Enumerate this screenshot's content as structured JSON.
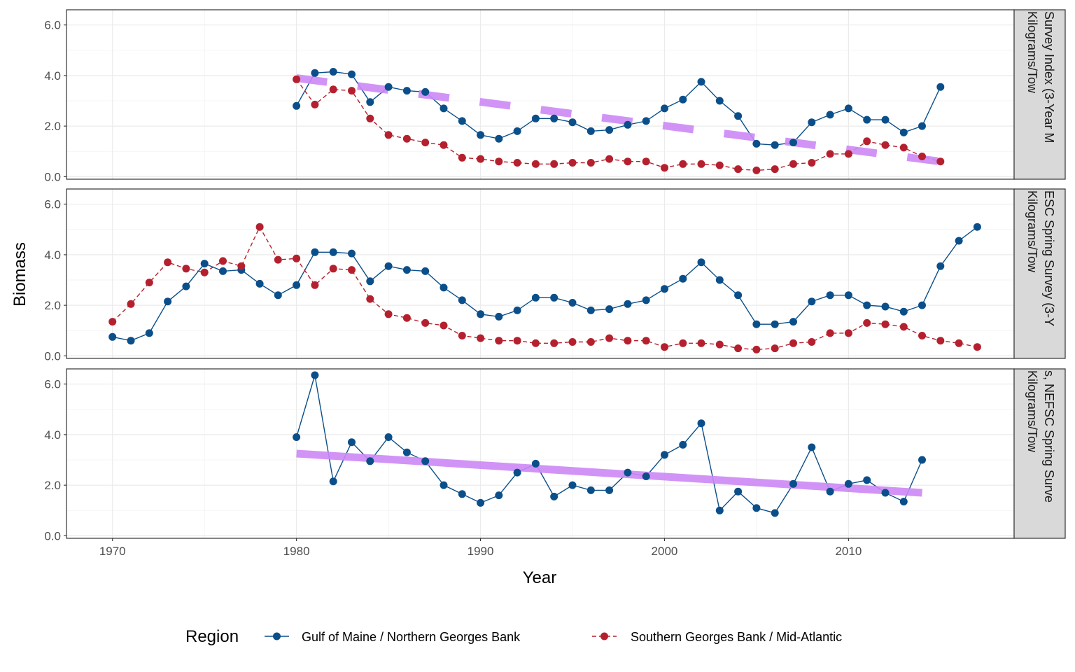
{
  "chart_data": {
    "type": "line",
    "xlabel": "Year",
    "ylabel": "Biomass",
    "xlim": [
      1967.5,
      2019
    ],
    "ylim": [
      -0.1,
      6.6
    ],
    "x_ticks": [
      1970,
      1980,
      1990,
      2000,
      2010
    ],
    "y_ticks": [
      0,
      2,
      4,
      6
    ],
    "y_tick_labels": [
      "0.0",
      "2.0",
      "4.0",
      "6.0"
    ],
    "grid": true,
    "legend": {
      "position": "bottom",
      "title": "Region",
      "entries": [
        {
          "name": "Gulf of Maine / Northern Georges Bank",
          "color": "#0b4f8a",
          "linestyle": "solid"
        },
        {
          "name": "Southern Georges Bank / Mid-Atlantic",
          "color": "#b5202e",
          "linestyle": "dashed"
        }
      ]
    },
    "trend_color": "#cc88f5",
    "panels": [
      {
        "strip_lines": [
          "Survey Index (3-Year M",
          "Kilograms/Tow"
        ],
        "series": [
          {
            "name": "Gulf of Maine / Northern Georges Bank",
            "x": [
              1980,
              1981,
              1982,
              1983,
              1984,
              1985,
              1986,
              1987,
              1988,
              1989,
              1990,
              1991,
              1992,
              1993,
              1994,
              1995,
              1996,
              1997,
              1998,
              1999,
              2000,
              2001,
              2002,
              2003,
              2004,
              2005,
              2006,
              2007,
              2008,
              2009,
              2010,
              2011,
              2012,
              2013,
              2014,
              2015
            ],
            "y": [
              2.8,
              4.1,
              4.15,
              4.05,
              2.95,
              3.55,
              3.4,
              3.35,
              2.7,
              2.2,
              1.65,
              1.5,
              1.8,
              2.3,
              2.3,
              2.15,
              1.8,
              1.85,
              2.05,
              2.2,
              2.7,
              3.05,
              3.75,
              3.0,
              2.4,
              1.3,
              1.25,
              1.35,
              2.15,
              2.45,
              2.7,
              2.25,
              2.25,
              1.75,
              2.0,
              3.55
            ]
          },
          {
            "name": "Southern Georges Bank / Mid-Atlantic",
            "x": [
              1980,
              1981,
              1982,
              1983,
              1984,
              1985,
              1986,
              1987,
              1988,
              1989,
              1990,
              1991,
              1992,
              1993,
              1994,
              1995,
              1996,
              1997,
              1998,
              1999,
              2000,
              2001,
              2002,
              2003,
              2004,
              2005,
              2006,
              2007,
              2008,
              2009,
              2010,
              2011,
              2012,
              2013,
              2014,
              2015
            ],
            "y": [
              3.85,
              2.85,
              3.45,
              3.4,
              2.3,
              1.65,
              1.5,
              1.35,
              1.25,
              0.75,
              0.7,
              0.6,
              0.55,
              0.5,
              0.5,
              0.55,
              0.55,
              0.7,
              0.6,
              0.6,
              0.35,
              0.5,
              0.5,
              0.45,
              0.3,
              0.25,
              0.3,
              0.5,
              0.55,
              0.9,
              0.9,
              1.4,
              1.25,
              1.15,
              0.8,
              0.6
            ]
          }
        ],
        "trend": {
          "x": [
            1980,
            2015
          ],
          "y": [
            3.9,
            0.6
          ],
          "style": "dashed"
        }
      },
      {
        "strip_lines": [
          "ESC Spring Survey (3-Y",
          "Kilograms/Tow"
        ],
        "series": [
          {
            "name": "Gulf of Maine / Northern Georges Bank",
            "x": [
              1970,
              1971,
              1972,
              1973,
              1974,
              1975,
              1976,
              1977,
              1978,
              1979,
              1980,
              1981,
              1982,
              1983,
              1984,
              1985,
              1986,
              1987,
              1988,
              1989,
              1990,
              1991,
              1992,
              1993,
              1994,
              1995,
              1996,
              1997,
              1998,
              1999,
              2000,
              2001,
              2002,
              2003,
              2004,
              2005,
              2006,
              2007,
              2008,
              2009,
              2010,
              2011,
              2012,
              2013,
              2014,
              2015,
              2016,
              2017
            ],
            "y": [
              0.75,
              0.6,
              0.9,
              2.15,
              2.75,
              3.65,
              3.35,
              3.4,
              2.85,
              2.4,
              2.8,
              4.1,
              4.1,
              4.05,
              2.95,
              3.55,
              3.4,
              3.35,
              2.7,
              2.2,
              1.65,
              1.55,
              1.8,
              2.3,
              2.3,
              2.1,
              1.8,
              1.85,
              2.05,
              2.2,
              2.65,
              3.05,
              3.7,
              3.0,
              2.4,
              1.25,
              1.25,
              1.35,
              2.15,
              2.4,
              2.4,
              2.0,
              1.95,
              1.75,
              2.0,
              3.55,
              4.55,
              5.1
            ]
          },
          {
            "name": "Southern Georges Bank / Mid-Atlantic",
            "x": [
              1970,
              1971,
              1972,
              1973,
              1974,
              1975,
              1976,
              1977,
              1978,
              1979,
              1980,
              1981,
              1982,
              1983,
              1984,
              1985,
              1986,
              1987,
              1988,
              1989,
              1990,
              1991,
              1992,
              1993,
              1994,
              1995,
              1996,
              1997,
              1998,
              1999,
              2000,
              2001,
              2002,
              2003,
              2004,
              2005,
              2006,
              2007,
              2008,
              2009,
              2010,
              2011,
              2012,
              2013,
              2014,
              2015,
              2016,
              2017
            ],
            "y": [
              1.35,
              2.05,
              2.9,
              3.7,
              3.45,
              3.3,
              3.75,
              3.55,
              5.1,
              3.8,
              3.85,
              2.8,
              3.45,
              3.4,
              2.25,
              1.65,
              1.5,
              1.3,
              1.2,
              0.8,
              0.7,
              0.6,
              0.6,
              0.5,
              0.5,
              0.55,
              0.55,
              0.7,
              0.6,
              0.6,
              0.35,
              0.5,
              0.5,
              0.45,
              0.3,
              0.25,
              0.3,
              0.5,
              0.55,
              0.9,
              0.9,
              1.3,
              1.25,
              1.15,
              0.8,
              0.6,
              0.5,
              0.35
            ]
          }
        ]
      },
      {
        "strip_lines": [
          "s, NEFSC Spring Surve",
          "Kilograms/Tow"
        ],
        "series": [
          {
            "name": "Gulf of Maine / Northern Georges Bank",
            "x": [
              1980,
              1981,
              1982,
              1983,
              1984,
              1985,
              1986,
              1987,
              1988,
              1989,
              1990,
              1991,
              1992,
              1993,
              1994,
              1995,
              1996,
              1997,
              1998,
              1999,
              2000,
              2001,
              2002,
              2003,
              2004,
              2005,
              2006,
              2007,
              2008,
              2009,
              2010,
              2011,
              2012,
              2013,
              2014
            ],
            "y": [
              3.9,
              6.35,
              2.15,
              3.7,
              2.95,
              3.9,
              3.3,
              2.95,
              2.0,
              1.65,
              1.3,
              1.6,
              2.5,
              2.85,
              1.55,
              2.0,
              1.8,
              1.8,
              2.5,
              2.35,
              3.2,
              3.6,
              4.45,
              1.0,
              1.75,
              1.1,
              0.9,
              2.05,
              3.5,
              1.75,
              2.05,
              2.2,
              1.7,
              1.35,
              3.0
            ]
          }
        ],
        "trend": {
          "x": [
            1980,
            2014
          ],
          "y": [
            3.25,
            1.7
          ],
          "style": "solid"
        }
      }
    ]
  }
}
